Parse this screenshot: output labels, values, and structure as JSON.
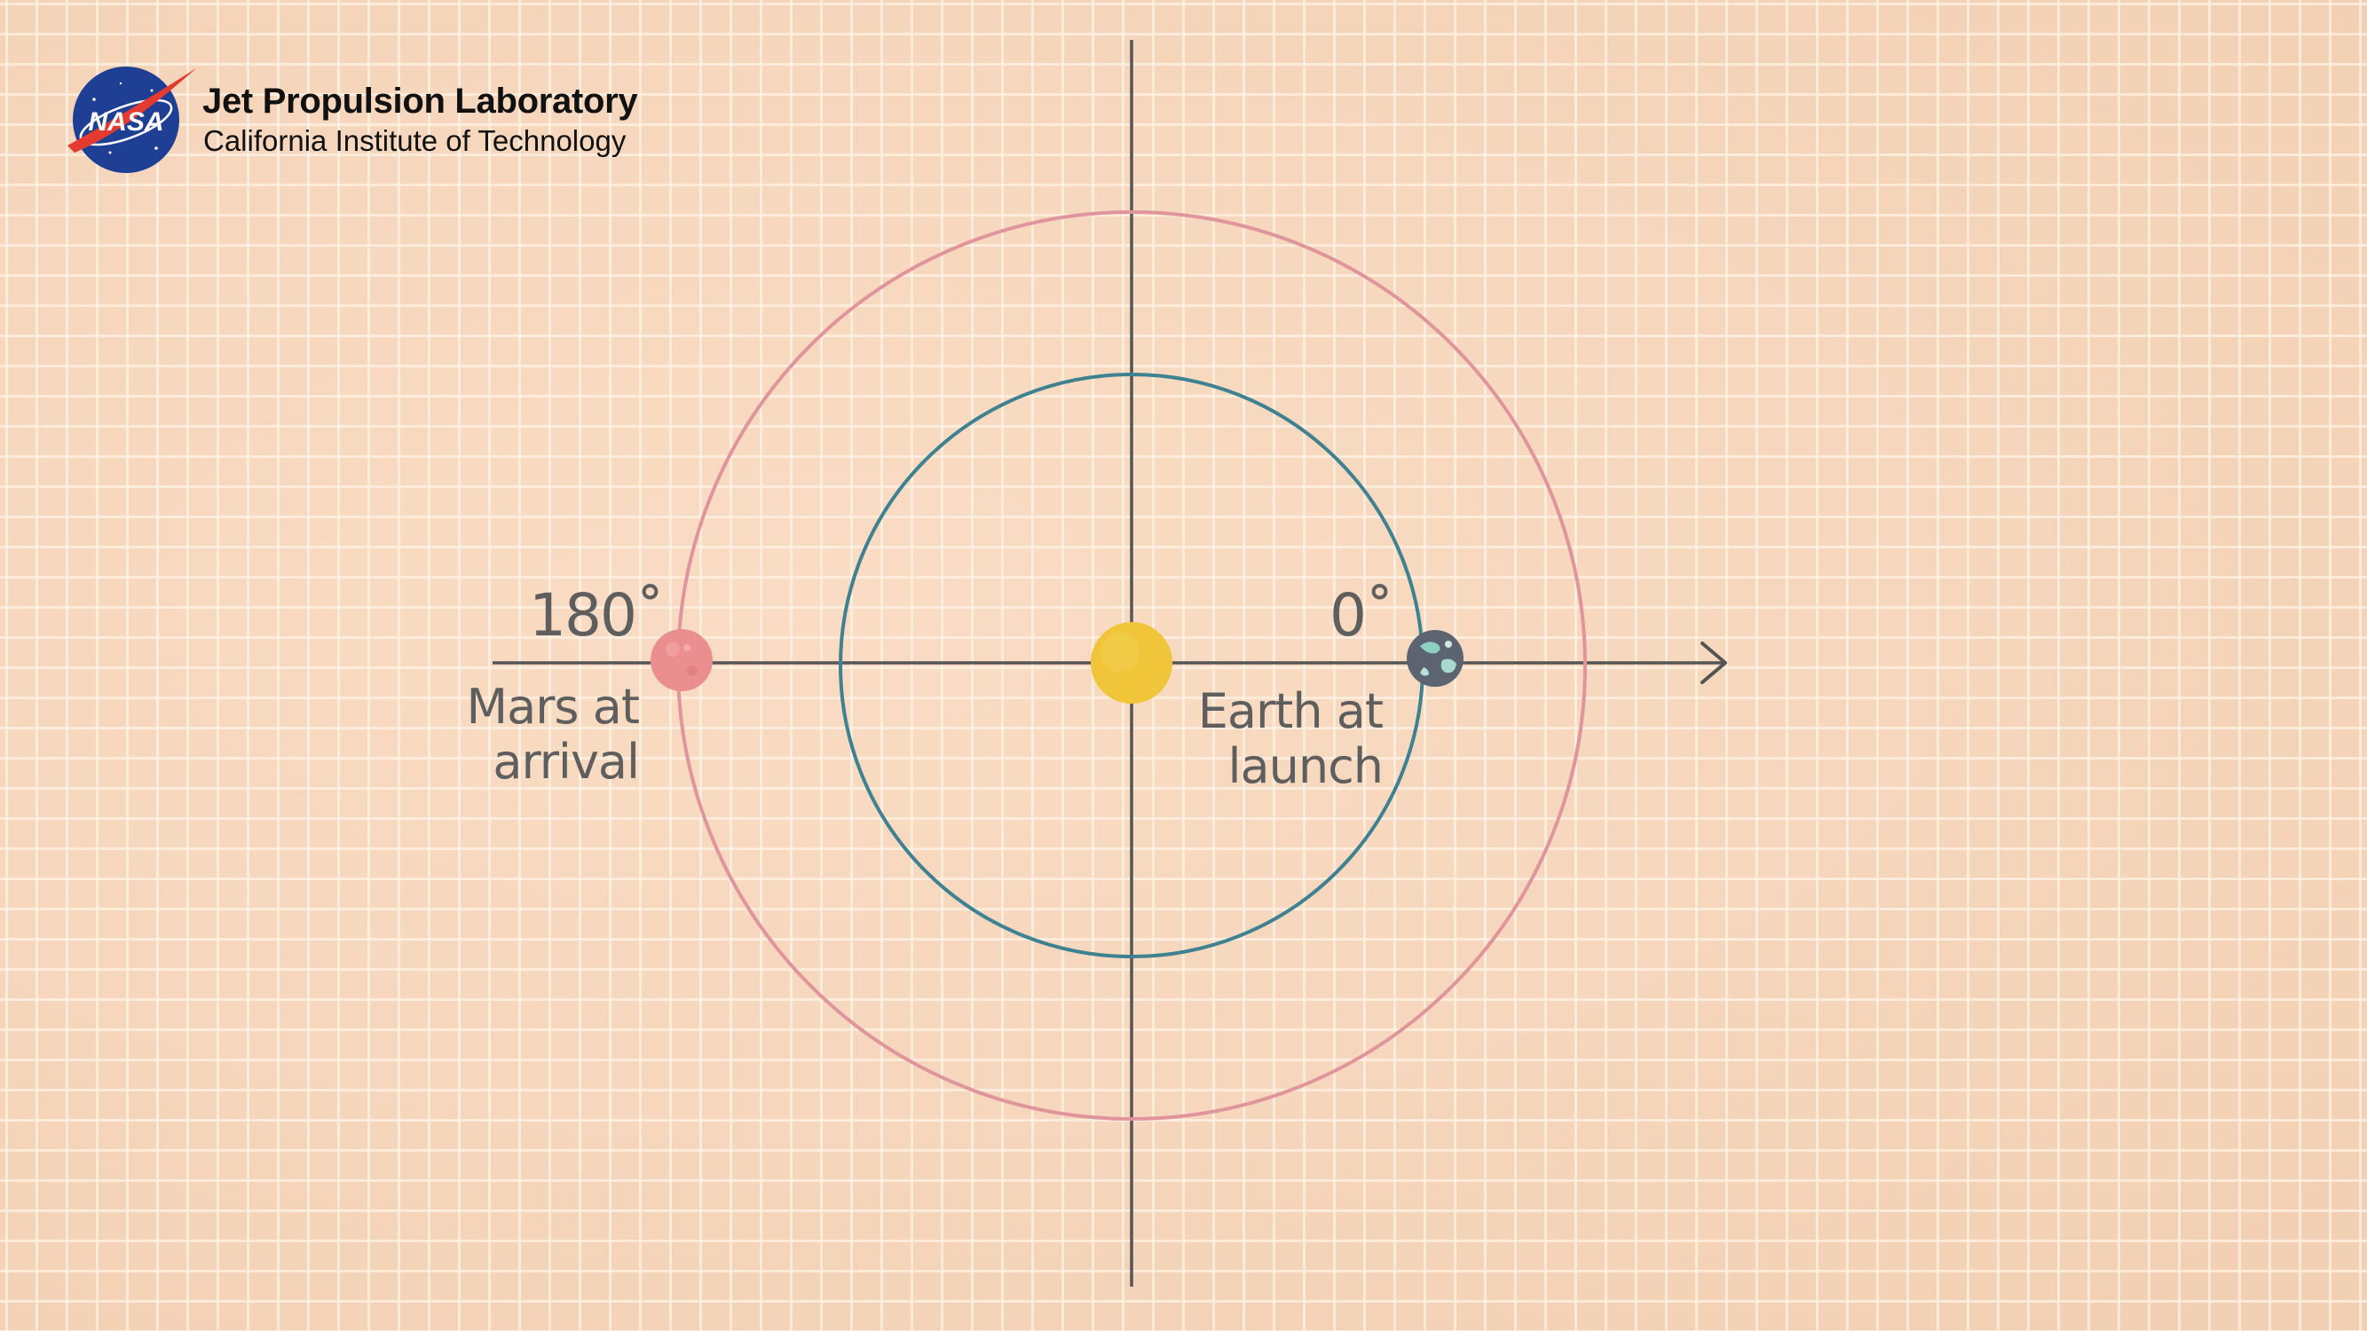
{
  "branding": {
    "title": "Jet Propulsion Laboratory",
    "subtitle": "California Institute of Technology",
    "logo_icon": "nasa-meatball-icon",
    "logo_text": "NASA"
  },
  "diagram": {
    "labels": {
      "angle_left": "180˚",
      "angle_right": "0˚",
      "mars_line1": "Mars at",
      "mars_line2": "arrival",
      "earth_line1": "Earth at",
      "earth_line2": "launch"
    },
    "colors": {
      "mars_orbit": "#e0959c",
      "earth_orbit": "#3e8190",
      "sun": "#f0c53a",
      "mars": "#eb8e90",
      "earth": "#5b6470",
      "axes": "#555555"
    },
    "icons": {
      "sun": "sun-icon",
      "mars": "mars-icon",
      "earth": "earth-icon",
      "arrow": "arrow-right-icon"
    }
  }
}
